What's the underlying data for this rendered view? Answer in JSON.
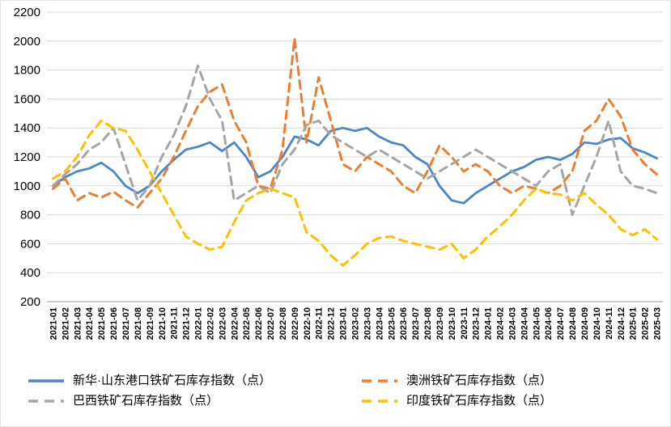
{
  "chart_data": {
    "type": "line",
    "title": "",
    "xlabel": "",
    "ylabel": "",
    "ylim": [
      200,
      2200
    ],
    "y_ticks": [
      200,
      400,
      600,
      800,
      1000,
      1200,
      1400,
      1600,
      1800,
      2000,
      2200
    ],
    "grid": true,
    "legend_position": "bottom",
    "x_label_rotation": -90,
    "categories": [
      "2021-01",
      "2021-02",
      "2021-03",
      "2021-04",
      "2021-05",
      "2021-06",
      "2021-07",
      "2021-08",
      "2021-09",
      "2021-10",
      "2021-11",
      "2021-12",
      "2022-01",
      "2022-02",
      "2022-03",
      "2022-04",
      "2022-05",
      "2022-06",
      "2022-07",
      "2022-08",
      "2022-09",
      "2022-10",
      "2022-11",
      "2022-12",
      "2023-01",
      "2023-02",
      "2023-03",
      "2023-04",
      "2023-05",
      "2023-06",
      "2023-07",
      "2023-08",
      "2023-09",
      "2023-10",
      "2023-11",
      "2023-12",
      "2024-01",
      "2024-02",
      "2024-03",
      "2024-04",
      "2024-05",
      "2024-06",
      "2024-07",
      "2024-08",
      "2024-09",
      "2024-10",
      "2024-11",
      "2024-12",
      "2025-01",
      "2025-02",
      "2025-03"
    ],
    "series": [
      {
        "name": "新华·山东港口铁矿石库存指数（点）",
        "color": "#4A86C8",
        "line_style": "solid",
        "values": [
          1000,
          1060,
          1100,
          1120,
          1160,
          1100,
          1000,
          950,
          1000,
          1100,
          1180,
          1250,
          1270,
          1300,
          1240,
          1300,
          1200,
          1060,
          1100,
          1200,
          1340,
          1320,
          1280,
          1380,
          1400,
          1380,
          1400,
          1340,
          1300,
          1280,
          1200,
          1150,
          1000,
          900,
          880,
          950,
          1000,
          1050,
          1100,
          1130,
          1180,
          1200,
          1180,
          1220,
          1300,
          1290,
          1320,
          1330,
          1260,
          1230,
          1190
        ]
      },
      {
        "name": "澳洲铁矿石库存指数（点）",
        "color": "#ED7D31",
        "line_style": "dashed",
        "values": [
          980,
          1050,
          900,
          950,
          920,
          960,
          900,
          850,
          950,
          1050,
          1200,
          1380,
          1550,
          1650,
          1700,
          1450,
          1300,
          1000,
          980,
          1250,
          2020,
          1300,
          1750,
          1450,
          1150,
          1100,
          1200,
          1150,
          1100,
          1000,
          950,
          1100,
          1280,
          1200,
          1100,
          1150,
          1100,
          1000,
          950,
          1000,
          980,
          950,
          1000,
          1100,
          1380,
          1450,
          1600,
          1480,
          1250,
          1150,
          1080
        ]
      },
      {
        "name": "巴西铁矿石库存指数（点）",
        "color": "#A5A5A5",
        "line_style": "dashed",
        "values": [
          1000,
          1080,
          1150,
          1250,
          1300,
          1400,
          1150,
          900,
          1000,
          1200,
          1350,
          1550,
          1830,
          1600,
          1450,
          900,
          950,
          1000,
          950,
          1150,
          1250,
          1420,
          1450,
          1350,
          1300,
          1250,
          1200,
          1250,
          1200,
          1150,
          1100,
          1050,
          1100,
          1150,
          1200,
          1250,
          1200,
          1150,
          1100,
          1050,
          1000,
          1100,
          1150,
          800,
          1000,
          1200,
          1450,
          1100,
          1000,
          980,
          950
        ]
      },
      {
        "name": "印度铁矿石库存指数（点）",
        "color": "#FFC000",
        "line_style": "dashed",
        "values": [
          1050,
          1100,
          1200,
          1350,
          1450,
          1400,
          1380,
          1250,
          1100,
          950,
          800,
          650,
          600,
          560,
          580,
          750,
          900,
          950,
          980,
          950,
          920,
          680,
          620,
          520,
          450,
          520,
          600,
          640,
          650,
          620,
          600,
          580,
          560,
          600,
          500,
          560,
          650,
          720,
          800,
          900,
          980,
          950,
          940,
          900,
          950,
          870,
          800,
          700,
          660,
          700,
          630
        ]
      }
    ],
    "style": {
      "gridline_color": "#d9d9d9",
      "axis_line_color": "#9e9e9e",
      "tick_label_color": "#000000"
    }
  }
}
